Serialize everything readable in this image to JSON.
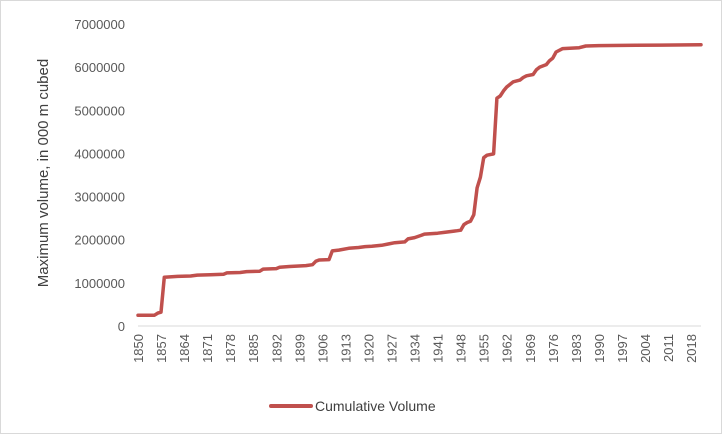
{
  "chart_data": {
    "type": "line",
    "title": "",
    "xlabel": "",
    "ylabel": "Maximum volume, in 000 m cubed",
    "xlim": [
      1850,
      2021
    ],
    "ylim": [
      0,
      7000000
    ],
    "grid": false,
    "legend_position": "bottom",
    "x_tick_labels": [
      "1850",
      "1857",
      "1864",
      "1871",
      "1878",
      "1885",
      "1892",
      "1899",
      "1906",
      "1913",
      "1920",
      "1927",
      "1934",
      "1941",
      "1948",
      "1955",
      "1962",
      "1969",
      "1976",
      "1983",
      "1990",
      "1997",
      "2004",
      "2011",
      "2018"
    ],
    "y_tick_labels": [
      "0",
      "1000000",
      "2000000",
      "3000000",
      "4000000",
      "5000000",
      "6000000",
      "7000000"
    ],
    "series": [
      {
        "name": "Cumulative Volume",
        "color": "#c0504d",
        "points": [
          [
            1850,
            250000
          ],
          [
            1855,
            250000
          ],
          [
            1856,
            300000
          ],
          [
            1857,
            320000
          ],
          [
            1858,
            1130000
          ],
          [
            1862,
            1150000
          ],
          [
            1866,
            1160000
          ],
          [
            1868,
            1180000
          ],
          [
            1872,
            1190000
          ],
          [
            1876,
            1200000
          ],
          [
            1877,
            1230000
          ],
          [
            1881,
            1240000
          ],
          [
            1883,
            1260000
          ],
          [
            1887,
            1270000
          ],
          [
            1888,
            1320000
          ],
          [
            1892,
            1330000
          ],
          [
            1893,
            1360000
          ],
          [
            1896,
            1380000
          ],
          [
            1901,
            1400000
          ],
          [
            1903,
            1420000
          ],
          [
            1904,
            1500000
          ],
          [
            1905,
            1530000
          ],
          [
            1908,
            1540000
          ],
          [
            1909,
            1740000
          ],
          [
            1911,
            1760000
          ],
          [
            1914,
            1800000
          ],
          [
            1917,
            1820000
          ],
          [
            1919,
            1840000
          ],
          [
            1921,
            1850000
          ],
          [
            1924,
            1870000
          ],
          [
            1926,
            1900000
          ],
          [
            1928,
            1930000
          ],
          [
            1931,
            1950000
          ],
          [
            1932,
            2020000
          ],
          [
            1934,
            2050000
          ],
          [
            1936,
            2100000
          ],
          [
            1937,
            2130000
          ],
          [
            1941,
            2150000
          ],
          [
            1943,
            2170000
          ],
          [
            1946,
            2200000
          ],
          [
            1947,
            2210000
          ],
          [
            1948,
            2220000
          ],
          [
            1949,
            2350000
          ],
          [
            1950,
            2400000
          ],
          [
            1951,
            2430000
          ],
          [
            1952,
            2580000
          ],
          [
            1953,
            3200000
          ],
          [
            1954,
            3450000
          ],
          [
            1955,
            3900000
          ],
          [
            1956,
            3960000
          ],
          [
            1958,
            3990000
          ],
          [
            1959,
            5280000
          ],
          [
            1960,
            5330000
          ],
          [
            1961,
            5450000
          ],
          [
            1962,
            5540000
          ],
          [
            1963,
            5600000
          ],
          [
            1964,
            5660000
          ],
          [
            1966,
            5700000
          ],
          [
            1967,
            5760000
          ],
          [
            1968,
            5800000
          ],
          [
            1970,
            5830000
          ],
          [
            1971,
            5940000
          ],
          [
            1972,
            6000000
          ],
          [
            1974,
            6060000
          ],
          [
            1975,
            6150000
          ],
          [
            1976,
            6210000
          ],
          [
            1977,
            6350000
          ],
          [
            1979,
            6430000
          ],
          [
            1984,
            6450000
          ],
          [
            1986,
            6490000
          ],
          [
            1990,
            6500000
          ],
          [
            2009,
            6510000
          ],
          [
            2021,
            6520000
          ]
        ]
      }
    ]
  }
}
